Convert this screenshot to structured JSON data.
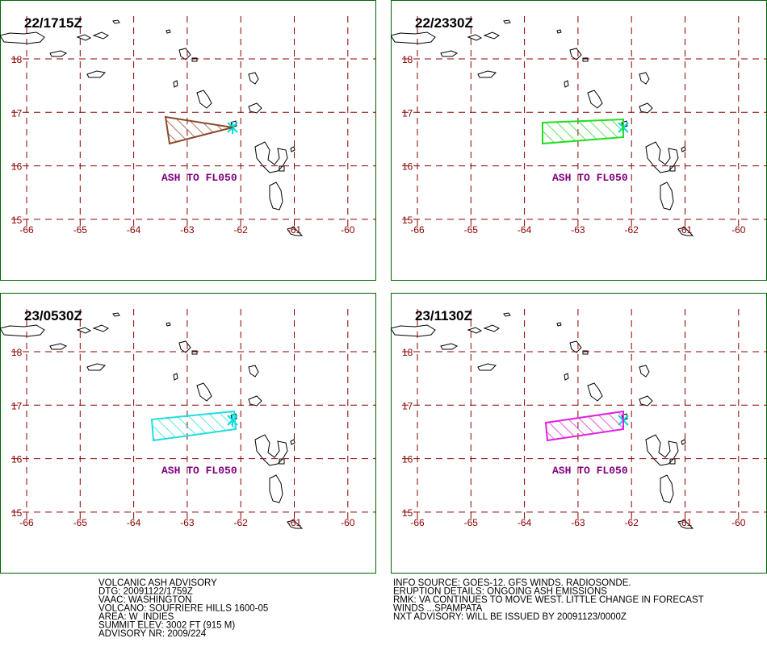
{
  "panels": [
    {
      "time": "22/1715Z",
      "annotation": "ASH TO FL050",
      "ash_color": "#8b4a2b"
    },
    {
      "time": "22/2330Z",
      "annotation": "ASH TO FL050",
      "ash_color": "#22dd22"
    },
    {
      "time": "23/0530Z",
      "annotation": "ASH TO FL050",
      "ash_color": "#22dddd"
    },
    {
      "time": "23/1130Z",
      "annotation": "ASH TO FL050",
      "ash_color": "#dd22dd"
    }
  ],
  "lat_labels": [
    "18",
    "17",
    "16",
    "15"
  ],
  "lon_labels": [
    "-66",
    "-65",
    "-64",
    "-63",
    "-62",
    "-61",
    "-60"
  ],
  "footer": {
    "left": [
      "VOLCANIC ASH ADVISORY",
      "DTG: 20091122/1759Z",
      "VAAC: WASHINGTON",
      "VOLCANO: SOUFRIERE HILLS 1600-05",
      "AREA: W_INDIES",
      "SUMMIT ELEV: 3002 FT (915 M)",
      "ADVISORY NR: 2009/224"
    ],
    "right": [
      "INFO SOURCE: GOES-12. GFS WINDS. RADIOSONDE.",
      "ERUPTION DETAILS: ONGOING ASH EMISSIONS",
      "RMK: VA CONTINUES TO MOVE WEST. LITTLE CHANGE IN FORECAST",
      "WINDS ...SPAMPATA",
      "NXT ADVISORY: WILL BE ISSUED BY 20091123/0000Z"
    ]
  }
}
